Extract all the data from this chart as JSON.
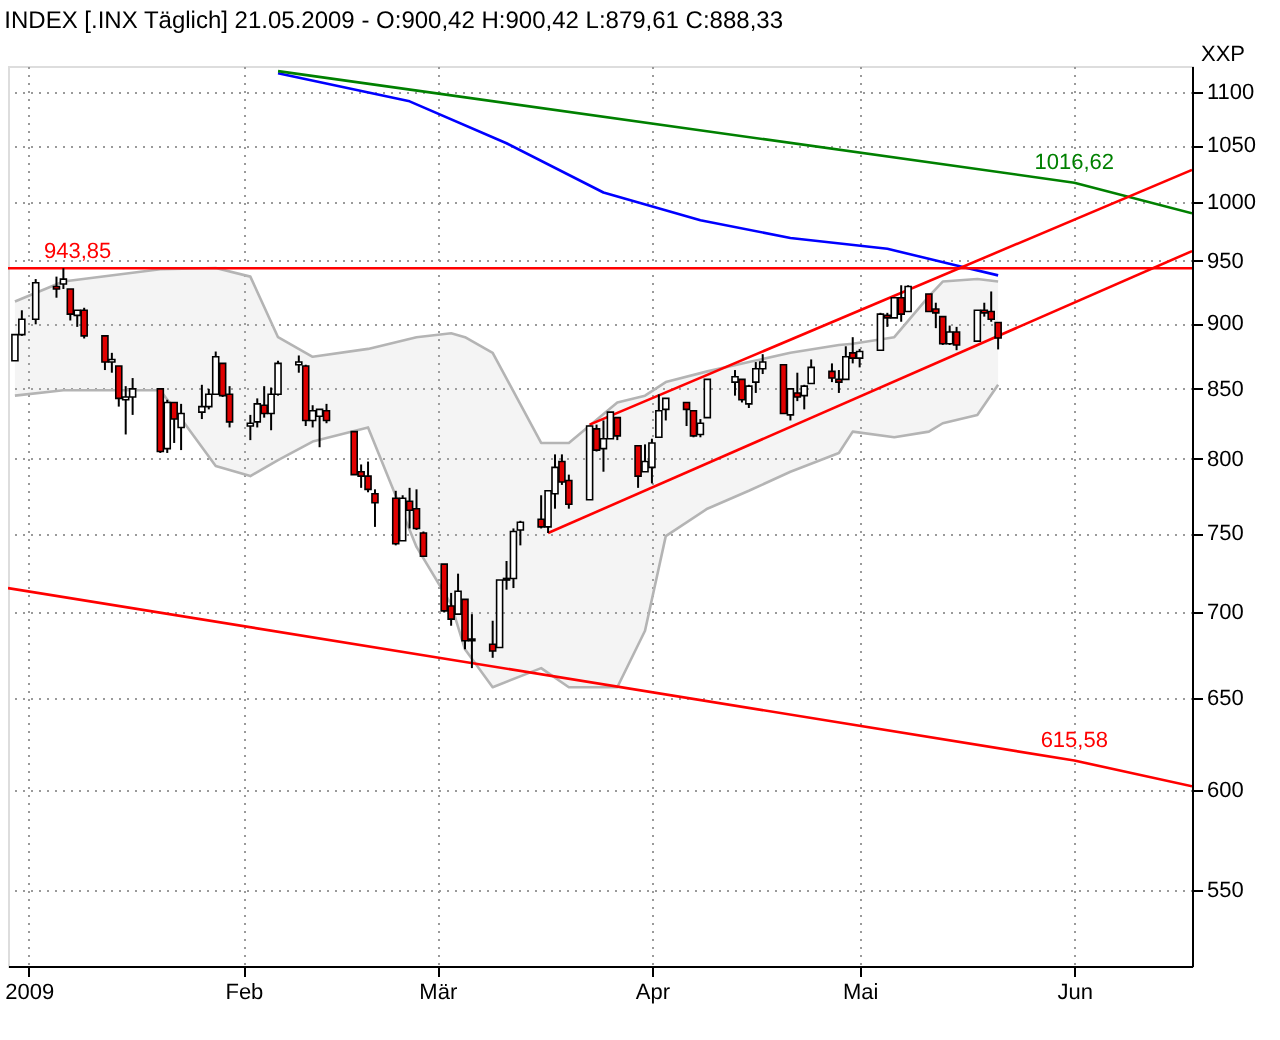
{
  "chart_data": {
    "type": "candlestick",
    "title": "INDEX [.INX Täglich] 21.05.2009 - O:900,42 H:900,42 L:879,61 C:888,33",
    "ylabel": "XXP",
    "log": true,
    "grid": true,
    "xlim": [
      "2008-12-29",
      "2009-06-18"
    ],
    "xticks": [
      {
        "value": "2009-01-01",
        "label": "2009"
      },
      {
        "value": "2009-02-01",
        "label": "Feb"
      },
      {
        "value": "2009-03-01",
        "label": "Mär"
      },
      {
        "value": "2009-04-01",
        "label": "Apr"
      },
      {
        "value": "2009-05-01",
        "label": "Mai"
      },
      {
        "value": "2009-06-01",
        "label": "Jun"
      }
    ],
    "ylim": [
      515,
      1125
    ],
    "yticks": [
      550,
      600,
      650,
      700,
      750,
      800,
      850,
      900,
      950,
      1000,
      1050,
      1100
    ],
    "x": [
      "2008-12-30",
      "2008-12-31",
      "2009-01-02",
      "2009-01-05",
      "2009-01-06",
      "2009-01-07",
      "2009-01-08",
      "2009-01-09",
      "2009-01-12",
      "2009-01-13",
      "2009-01-14",
      "2009-01-15",
      "2009-01-16",
      "2009-01-20",
      "2009-01-21",
      "2009-01-22",
      "2009-01-23",
      "2009-01-26",
      "2009-01-27",
      "2009-01-28",
      "2009-01-29",
      "2009-01-30",
      "2009-02-02",
      "2009-02-03",
      "2009-02-04",
      "2009-02-05",
      "2009-02-06",
      "2009-02-09",
      "2009-02-10",
      "2009-02-11",
      "2009-02-12",
      "2009-02-13",
      "2009-02-17",
      "2009-02-18",
      "2009-02-19",
      "2009-02-20",
      "2009-02-23",
      "2009-02-24",
      "2009-02-25",
      "2009-02-26",
      "2009-02-27",
      "2009-03-02",
      "2009-03-03",
      "2009-03-04",
      "2009-03-05",
      "2009-03-06",
      "2009-03-09",
      "2009-03-10",
      "2009-03-11",
      "2009-03-12",
      "2009-03-13",
      "2009-03-16",
      "2009-03-17",
      "2009-03-18",
      "2009-03-19",
      "2009-03-20",
      "2009-03-23",
      "2009-03-24",
      "2009-03-25",
      "2009-03-26",
      "2009-03-27",
      "2009-03-30",
      "2009-03-31",
      "2009-04-01",
      "2009-04-02",
      "2009-04-03",
      "2009-04-06",
      "2009-04-07",
      "2009-04-08",
      "2009-04-09",
      "2009-04-13",
      "2009-04-14",
      "2009-04-15",
      "2009-04-16",
      "2009-04-17",
      "2009-04-20",
      "2009-04-21",
      "2009-04-22",
      "2009-04-23",
      "2009-04-24",
      "2009-04-27",
      "2009-04-28",
      "2009-04-29",
      "2009-04-30",
      "2009-05-01",
      "2009-05-04",
      "2009-05-05",
      "2009-05-06",
      "2009-05-07",
      "2009-05-08",
      "2009-05-11",
      "2009-05-12",
      "2009-05-13",
      "2009-05-14",
      "2009-05-15",
      "2009-05-18",
      "2009-05-19",
      "2009-05-20",
      "2009-05-21"
    ],
    "ohlc": [
      [
        871,
        891,
        871,
        891
      ],
      [
        891,
        910,
        890,
        903
      ],
      [
        903,
        935,
        899,
        932
      ],
      [
        929,
        937,
        920,
        927
      ],
      [
        931,
        943.85,
        927,
        935
      ],
      [
        927,
        927,
        902,
        907
      ],
      [
        906,
        910,
        897,
        910
      ],
      [
        910,
        912,
        888,
        890
      ],
      [
        890,
        890,
        864,
        870
      ],
      [
        870,
        877,
        862,
        872
      ],
      [
        867,
        867,
        837,
        843
      ],
      [
        842,
        852,
        817,
        844
      ],
      [
        844,
        858,
        831,
        850
      ],
      [
        850,
        850,
        804,
        805
      ],
      [
        807,
        842,
        804,
        840
      ],
      [
        840,
        840,
        811,
        828
      ],
      [
        822,
        839,
        806,
        832
      ],
      [
        833,
        853,
        828,
        837
      ],
      [
        837,
        850,
        835,
        846
      ],
      [
        846,
        878,
        846,
        874
      ],
      [
        869,
        869,
        844,
        845
      ],
      [
        846,
        852,
        822,
        826
      ],
      [
        823,
        831,
        813,
        825
      ],
      [
        826,
        843,
        822,
        839
      ],
      [
        838,
        852,
        829,
        832
      ],
      [
        832,
        851,
        820,
        846
      ],
      [
        846,
        871,
        845,
        869
      ],
      [
        868,
        875,
        862,
        870
      ],
      [
        867,
        868,
        823,
        827
      ],
      [
        827,
        838,
        822,
        834
      ],
      [
        830,
        835,
        808,
        835
      ],
      [
        834,
        839,
        825,
        827
      ],
      [
        819,
        819,
        789,
        789
      ],
      [
        791,
        796,
        780,
        788
      ],
      [
        788,
        798,
        777,
        779
      ],
      [
        776,
        779,
        754,
        770
      ],
      [
        773,
        778,
        742,
        743
      ],
      [
        745,
        775,
        745,
        773
      ],
      [
        771,
        780,
        753,
        765
      ],
      [
        766,
        779,
        752,
        753
      ],
      [
        750,
        751,
        735,
        735
      ],
      [
        730,
        730,
        700,
        701
      ],
      [
        704,
        712,
        692,
        696
      ],
      [
        699,
        724,
        699,
        713
      ],
      [
        708,
        708,
        678,
        683
      ],
      [
        684,
        699,
        667,
        683
      ],
      [
        681,
        695,
        673,
        677
      ],
      [
        679,
        720,
        679,
        720
      ],
      [
        720,
        732,
        714,
        721
      ],
      [
        721,
        753,
        715,
        751
      ],
      [
        752,
        758,
        742,
        757
      ],
      [
        759,
        775,
        753,
        754
      ],
      [
        754,
        778,
        750,
        778
      ],
      [
        776,
        803,
        766,
        794
      ],
      [
        798,
        803,
        782,
        784
      ],
      [
        785,
        789,
        766,
        769
      ],
      [
        772,
        823,
        772,
        823
      ],
      [
        821,
        824,
        805,
        806
      ],
      [
        807,
        827,
        791,
        814
      ],
      [
        814,
        833,
        814,
        833
      ],
      [
        829,
        829,
        813,
        816
      ],
      [
        809,
        809,
        780,
        788
      ],
      [
        791,
        810,
        791,
        798
      ],
      [
        794,
        814,
        783,
        811
      ],
      [
        815,
        846,
        815,
        834
      ],
      [
        835,
        843,
        827,
        843
      ],
      [
        840,
        840,
        823,
        835
      ],
      [
        834,
        834,
        815,
        816
      ],
      [
        817,
        828,
        815,
        825
      ],
      [
        829,
        857,
        829,
        857
      ],
      [
        855,
        864,
        845,
        859
      ],
      [
        857,
        857,
        840,
        842
      ],
      [
        839,
        853,
        836,
        852
      ],
      [
        855,
        870,
        847,
        865
      ],
      [
        865,
        876,
        861,
        870
      ],
      [
        868,
        868,
        832,
        832
      ],
      [
        831,
        850,
        827,
        850
      ],
      [
        847,
        862,
        841,
        844
      ],
      [
        845,
        853,
        835,
        852
      ],
      [
        854,
        872,
        854,
        866
      ],
      [
        863,
        869,
        855,
        858
      ],
      [
        857,
        864,
        847,
        855
      ],
      [
        857,
        882,
        857,
        874
      ],
      [
        877,
        889,
        869,
        873
      ],
      [
        873,
        880,
        866,
        878
      ],
      [
        879,
        908,
        879,
        907
      ],
      [
        906,
        908,
        897,
        904
      ],
      [
        904,
        920,
        904,
        920
      ],
      [
        920,
        930,
        901,
        907
      ],
      [
        909,
        930,
        909,
        929
      ],
      [
        923,
        923,
        909,
        909
      ],
      [
        911,
        916,
        896,
        908
      ],
      [
        905,
        905,
        883,
        884
      ],
      [
        884,
        898,
        883,
        893
      ],
      [
        893,
        897,
        879,
        883
      ],
      [
        886,
        910,
        886,
        910
      ],
      [
        910,
        916,
        905,
        908
      ],
      [
        909,
        925,
        901,
        903
      ],
      [
        900.42,
        900.42,
        879.61,
        888.33
      ]
    ],
    "series": [
      {
        "type": "line",
        "color": "#b4b4b4",
        "x": [
          "2008-12-30",
          "2009-01-06",
          "2009-01-20",
          "2009-01-28",
          "2009-02-02",
          "2009-02-06",
          "2009-02-11",
          "2009-02-19",
          "2009-02-26",
          "2009-03-03",
          "2009-03-05",
          "2009-03-09",
          "2009-03-16",
          "2009-03-20",
          "2009-03-27",
          "2009-03-31",
          "2009-04-03",
          "2009-04-09",
          "2009-04-15",
          "2009-04-21",
          "2009-04-28",
          "2009-04-30",
          "2009-05-06",
          "2009-05-11",
          "2009-05-13",
          "2009-05-18",
          "2009-05-21"
        ],
        "values": [
          917,
          933,
          943,
          944,
          937,
          889,
          874,
          880,
          889,
          892,
          889,
          877,
          811,
          811,
          840,
          845,
          855,
          863,
          870,
          877,
          883,
          884,
          889,
          921,
          933,
          935,
          933
        ],
        "upper": [
          917,
          933,
          943,
          944,
          937,
          889,
          874,
          880,
          889,
          892,
          889,
          877,
          811,
          811,
          840,
          845,
          855,
          863,
          870,
          877,
          883,
          884,
          889,
          921,
          933,
          935,
          933
        ],
        "lower": [
          845,
          849,
          849,
          795,
          788,
          799,
          812,
          822,
          741,
          705,
          678,
          656,
          667,
          656,
          656,
          689,
          748,
          766,
          778,
          791,
          804,
          819,
          815,
          819,
          825,
          831,
          853
        ]
      },
      {
        "type": "line",
        "color": "#b4b4b4",
        "x": [
          "2008-12-30",
          "2009-01-06",
          "2009-01-20",
          "2009-01-28",
          "2009-02-02",
          "2009-02-06",
          "2009-02-11",
          "2009-02-19",
          "2009-02-26",
          "2009-03-03",
          "2009-03-05",
          "2009-03-09",
          "2009-03-16",
          "2009-03-20",
          "2009-03-27",
          "2009-03-31",
          "2009-04-03",
          "2009-04-09",
          "2009-04-15",
          "2009-04-21",
          "2009-04-28",
          "2009-04-30",
          "2009-05-06",
          "2009-05-11",
          "2009-05-13",
          "2009-05-18",
          "2009-05-21"
        ],
        "values": [
          845,
          849,
          849,
          795,
          788,
          799,
          812,
          822,
          741,
          705,
          678,
          656,
          667,
          656,
          656,
          689,
          748,
          766,
          778,
          791,
          804,
          819,
          815,
          819,
          825,
          831,
          853
        ]
      },
      {
        "type": "line",
        "color": "#0000ff",
        "x": [
          "2009-02-06",
          "2009-02-25",
          "2009-03-11",
          "2009-03-25",
          "2009-04-08",
          "2009-04-21",
          "2009-05-05",
          "2009-05-15",
          "2009-05-21"
        ],
        "values": [
          1118,
          1091,
          1052,
          1008,
          984,
          969,
          960,
          946,
          938
        ]
      },
      {
        "type": "line",
        "color": "#008000",
        "x": [
          "2009-02-06",
          "2009-06-01",
          "2009-06-18"
        ],
        "values": [
          1120,
          1016.62,
          990
        ]
      },
      {
        "type": "line",
        "color": "#ff0000",
        "x": [
          "2008-12-29",
          "2009-06-01",
          "2009-06-18"
        ],
        "values": [
          715,
          615.58,
          602
        ]
      },
      {
        "type": "line",
        "color": "#ff0000",
        "x": [
          "2009-03-17",
          "2009-06-18"
        ],
        "values": [
          750,
          958
        ]
      },
      {
        "type": "line",
        "color": "#ff0000",
        "x": [
          "2009-03-23",
          "2009-06-18"
        ],
        "values": [
          824,
          1028
        ]
      }
    ],
    "ref_lines": [
      {
        "axis": "y",
        "value": 943.85,
        "label": "943,85",
        "color": "#ff0000"
      }
    ],
    "annotations": [
      {
        "text": "1016,62",
        "x": "2009-06-01",
        "y": 1016.62
      },
      {
        "text": "615,58",
        "x": "2009-06-01",
        "y": 615.58
      }
    ]
  }
}
